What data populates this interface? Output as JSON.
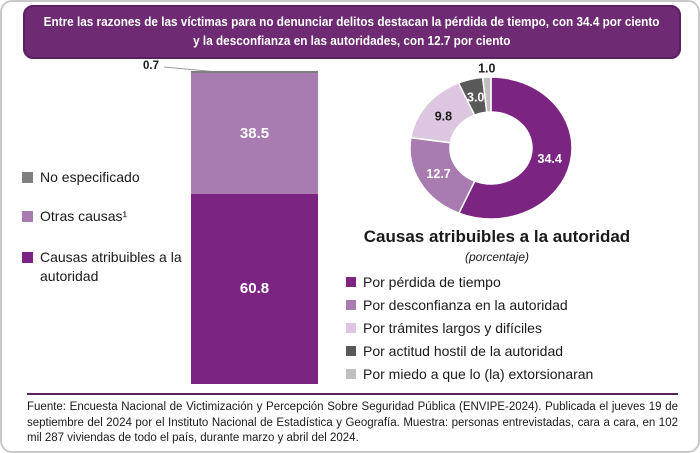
{
  "banner": {
    "line1": "Entre las razones de las víctimas para no denunciar delitos destacan la pérdida de tiempo, con 34.4 por ciento",
    "line2": "y la  desconfianza en las autoridades, con 12.7 por ciento"
  },
  "colors": {
    "banner_bg": "#6e2a72",
    "banner_border": "#5a1f5e",
    "dark_purple": "#7b2482",
    "medium_purple": "#a87cb0",
    "lavender": "#ddc7e0",
    "dark_gray": "#595959",
    "light_gray": "#bfbfbf",
    "segment_gray": "#7f7f7f",
    "rule": "#5b255c"
  },
  "chart_data": [
    {
      "type": "bar",
      "variant": "stacked-single-column",
      "ylim": [
        0,
        100
      ],
      "unit": "por ciento",
      "segments": [
        {
          "label": "No especificado",
          "value": 0.7,
          "display": "0.7",
          "color": "#7f7f7f",
          "label_outside": true
        },
        {
          "label": "Otras causas¹",
          "value": 38.5,
          "display": "38.5",
          "color": "#a87cb0",
          "text_color": "#ffffff"
        },
        {
          "label": "Causas atribuibles a la autoridad",
          "value": 60.8,
          "display": "60.8",
          "color": "#7b2482",
          "text_color": "#ffffff"
        }
      ]
    },
    {
      "type": "pie",
      "variant": "donut",
      "title": "Causas atribuibles a la autoridad",
      "subtitle": "(porcentaje)",
      "slices": [
        {
          "label": "Por pérdida de tiempo",
          "value": 34.4,
          "display": "34.4",
          "color": "#7b2482",
          "text_color": "#ffffff"
        },
        {
          "label": "Por desconfianza en la autoridad",
          "value": 12.7,
          "display": "12.7",
          "color": "#a87cb0",
          "text_color": "#ffffff"
        },
        {
          "label": "Por trámites largos y difíciles",
          "value": 9.8,
          "display": "9.8",
          "color": "#ddc7e0",
          "text_color": "#1a1a1a"
        },
        {
          "label": "Por actitud hostil de la autoridad",
          "value": 3.0,
          "display": "3.0",
          "color": "#595959",
          "text_color": "#ffffff"
        },
        {
          "label": "Por miedo a que lo (la) extorsionaran",
          "value": 1.0,
          "display": "1.0",
          "color": "#bfbfbf",
          "text_color": "#1a1a1a",
          "label_outside": true
        }
      ]
    }
  ],
  "footer": {
    "source": "Fuente: Encuesta Nacional de Victimización y Percepción Sobre Seguridad Pública (ENVIPE-2024). Publicada el jueves 19 de septiembre del 2024 por el Instituto Nacional de Estadística y Geografía. Muestra: personas entrevistadas, cara a cara, en 102 mil 287 viviendas de todo el país, durante marzo y abril del 2024."
  }
}
